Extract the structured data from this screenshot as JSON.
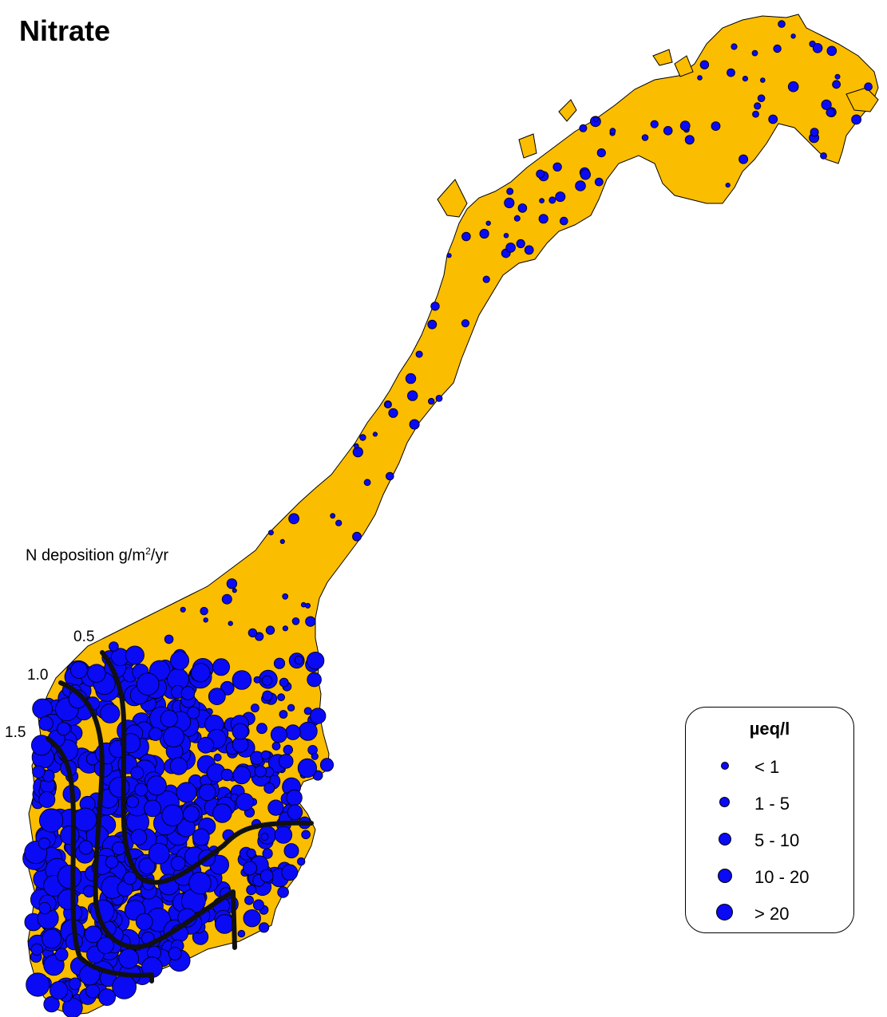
{
  "title": "Nitrate",
  "deposition": {
    "label_prefix": "N deposition g/m",
    "label_exp": "2",
    "label_suffix": "/yr",
    "isolines": [
      "0.5",
      "1.0",
      "1.5"
    ]
  },
  "legend": {
    "title": "µeq/l",
    "classes": [
      {
        "label": "< 1"
      },
      {
        "label": "1 - 5"
      },
      {
        "label": "5 - 10"
      },
      {
        "label": "10 - 20"
      },
      {
        "label": "> 20"
      }
    ]
  },
  "colors": {
    "land": "#fbbd00",
    "site_marker": "#0a0af5",
    "isoline": "#111111"
  }
}
